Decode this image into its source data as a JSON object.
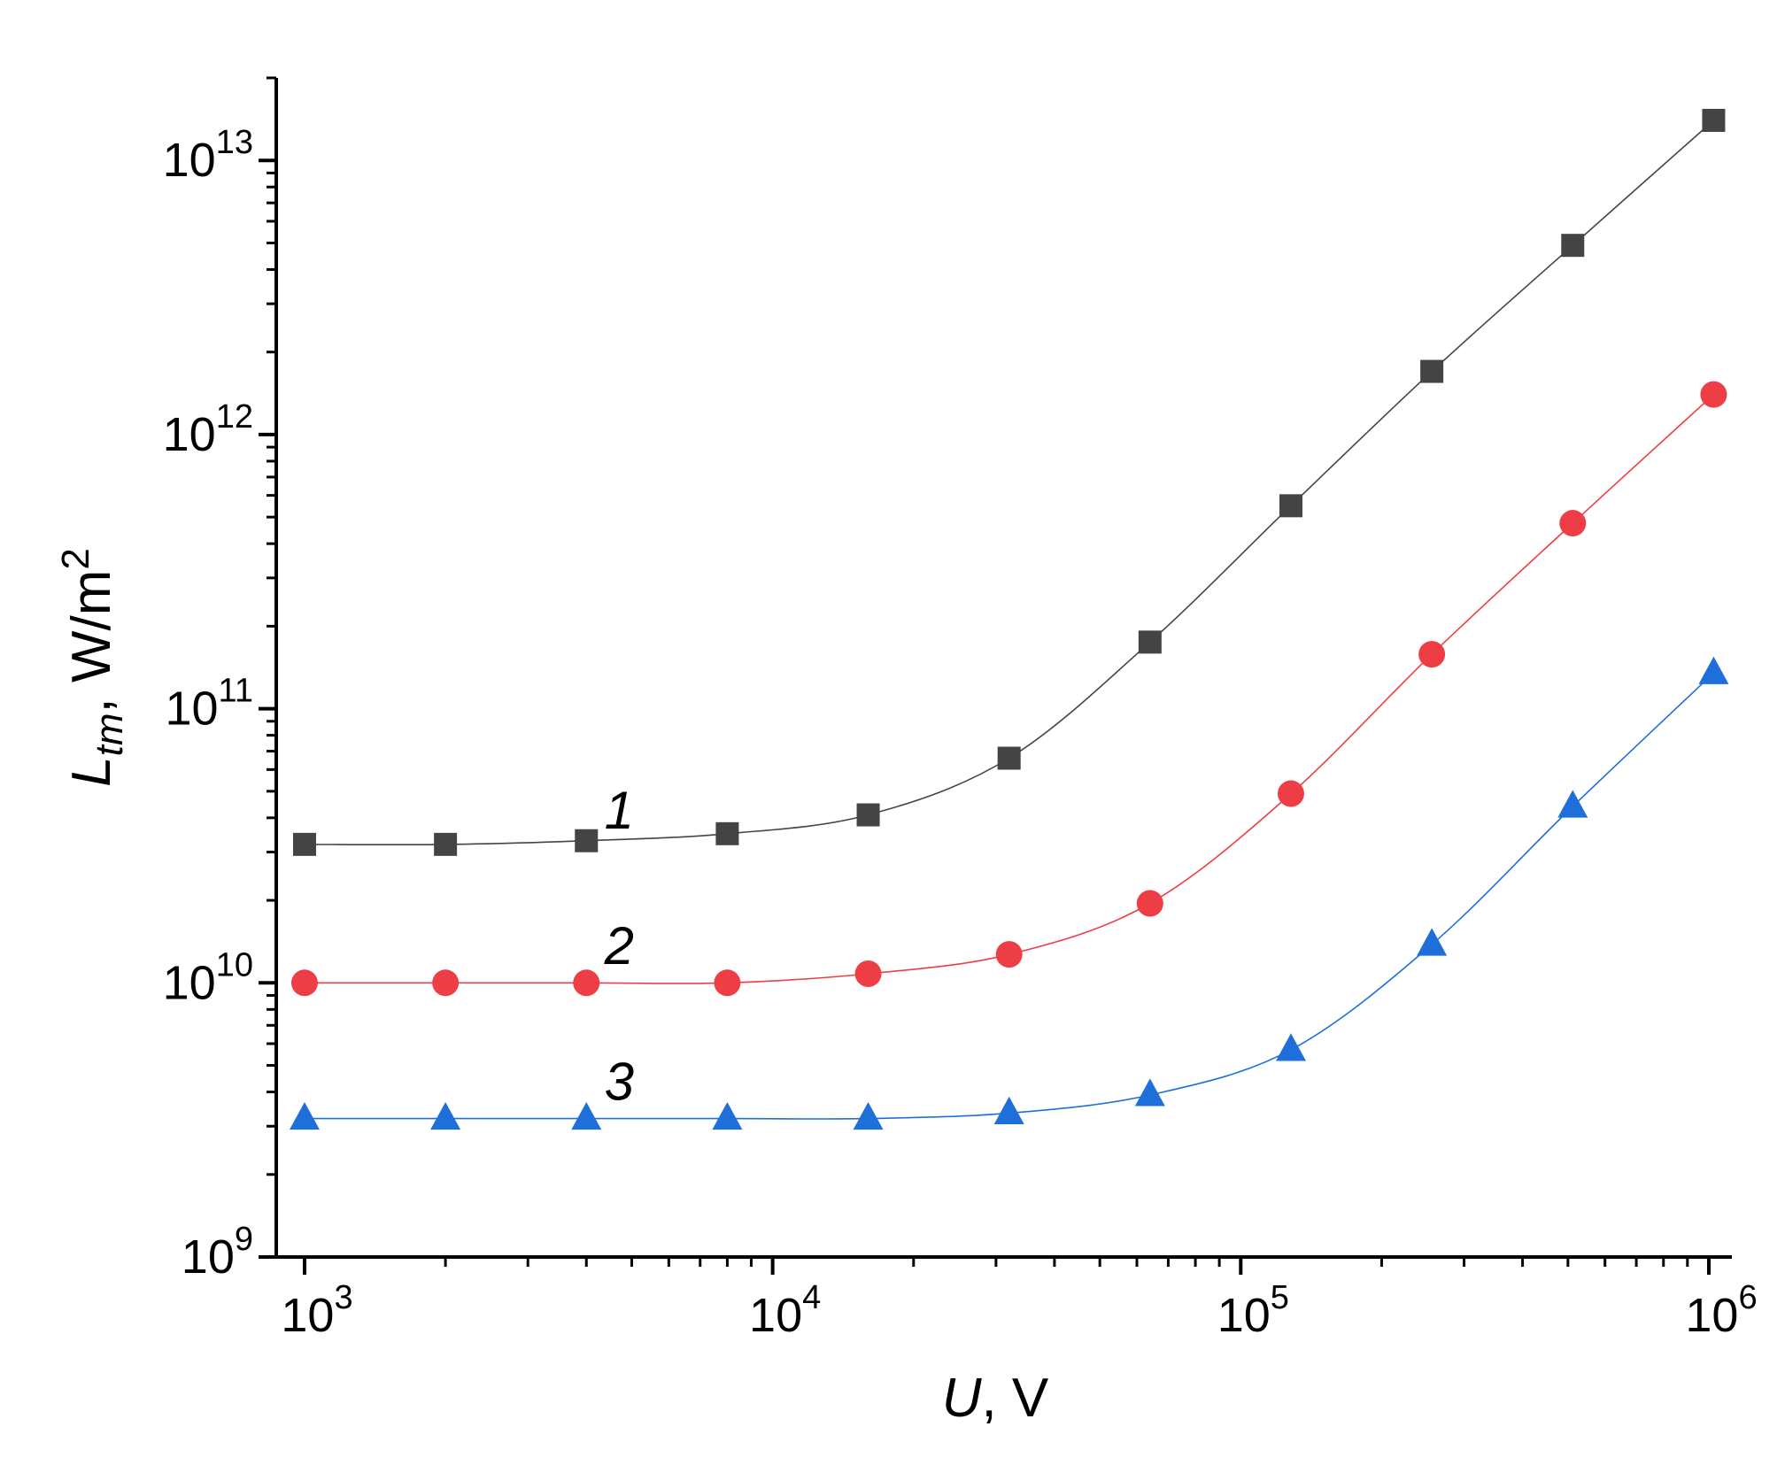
{
  "chart_data": {
    "type": "line",
    "scale": "log-log",
    "title": "",
    "xlabel": {
      "var": "U",
      "unit": ", V"
    },
    "ylabel": {
      "var": "L",
      "sub": "tm",
      "unit": ", W/m",
      "sup": "2"
    },
    "xlim": [
      870,
      1120000
    ],
    "ylim": [
      1000000000.0,
      20000000000000.0
    ],
    "x_ticks": [
      {
        "value": 1000,
        "base": "10",
        "exp": "3"
      },
      {
        "value": 10000,
        "base": "10",
        "exp": "4"
      },
      {
        "value": 100000,
        "base": "10",
        "exp": "5"
      },
      {
        "value": 1000000,
        "base": "10",
        "exp": "6"
      }
    ],
    "y_ticks": [
      {
        "value": 1000000000.0,
        "base": "10",
        "exp": "9"
      },
      {
        "value": 10000000000.0,
        "base": "10",
        "exp": "10"
      },
      {
        "value": 100000000000.0,
        "base": "10",
        "exp": "11"
      },
      {
        "value": 1000000000000.0,
        "base": "10",
        "exp": "12"
      },
      {
        "value": 10000000000000.0,
        "base": "10",
        "exp": "13"
      }
    ],
    "x": [
      1000,
      2000,
      4000,
      8000,
      16000,
      32000,
      64000,
      128000,
      256000,
      512000,
      1024000
    ],
    "series": [
      {
        "name": "1",
        "label": "1",
        "label_at": [
          4500,
          43000000000.0
        ],
        "marker": "square",
        "color": "#444444",
        "values": [
          32000000000.0,
          32000000000.0,
          33000000000.0,
          35000000000.0,
          41000000000.0,
          66000000000.0,
          175000000000.0,
          550000000000.0,
          1700000000000.0,
          4900000000000.0,
          14000000000000.0
        ]
      },
      {
        "name": "2",
        "label": "2",
        "label_at": [
          4500,
          13800000000.0
        ],
        "marker": "circle",
        "color": "#ee3e45",
        "values": [
          10000000000.0,
          10000000000.0,
          10000000000.0,
          10000000000.0,
          10800000000.0,
          12700000000.0,
          19500000000.0,
          49000000000.0,
          158000000000.0,
          475000000000.0,
          1400000000000.0
        ]
      },
      {
        "name": "3",
        "label": "3",
        "label_at": [
          4500,
          4400000000.0
        ],
        "marker": "triangle",
        "color": "#1f6fdb",
        "values": [
          3200000000.0,
          3200000000.0,
          3200000000.0,
          3200000000.0,
          3200000000.0,
          3350000000.0,
          3900000000.0,
          5700000000.0,
          13800000000.0,
          44000000000.0,
          135000000000.0
        ]
      }
    ]
  }
}
